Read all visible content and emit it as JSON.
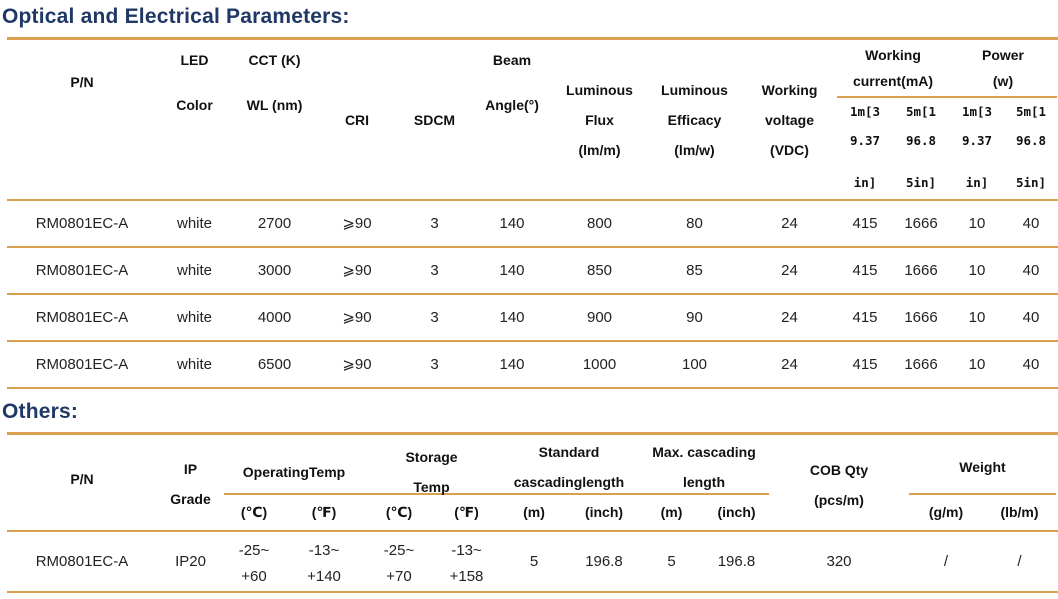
{
  "colors": {
    "accent_line": "#D9A050",
    "title_navy": "#1F3864"
  },
  "optical": {
    "title": "Optical and Electrical Parameters:",
    "headers": {
      "pn": "P/N",
      "led": [
        "LED",
        "Color"
      ],
      "cct": [
        "CCT (K)",
        "WL (nm)"
      ],
      "cri": "CRI",
      "sdcm": "SDCM",
      "beam": [
        "Beam",
        "Angle(°)"
      ],
      "flux": [
        "Luminous",
        "Flux",
        "(lm/m)"
      ],
      "efficacy": [
        "Luminous",
        "Efficacy",
        "(lm/w)"
      ],
      "voltage": [
        "Working",
        "voltage",
        "(VDC)"
      ],
      "current_group": [
        "Working",
        "current(mA)"
      ],
      "power_group": [
        "Power",
        "(w)"
      ],
      "sub_1m": [
        "1m[3",
        "9.37",
        "in]"
      ],
      "sub_5m": [
        "5m[1",
        "96.8",
        "5in]"
      ]
    },
    "rows": [
      [
        "RM0801EC-A",
        "white",
        "2700",
        "⩾90",
        "3",
        "140",
        "800",
        "80",
        "24",
        "415",
        "1666",
        "10",
        "40"
      ],
      [
        "RM0801EC-A",
        "white",
        "3000",
        "⩾90",
        "3",
        "140",
        "850",
        "85",
        "24",
        "415",
        "1666",
        "10",
        "40"
      ],
      [
        "RM0801EC-A",
        "white",
        "4000",
        "⩾90",
        "3",
        "140",
        "900",
        "90",
        "24",
        "415",
        "1666",
        "10",
        "40"
      ],
      [
        "RM0801EC-A",
        "white",
        "6500",
        "⩾90",
        "3",
        "140",
        "1000",
        "100",
        "24",
        "415",
        "1666",
        "10",
        "40"
      ]
    ]
  },
  "others": {
    "title": "Others:",
    "headers": {
      "pn": "P/N",
      "ip": [
        "IP",
        "Grade"
      ],
      "operating": "OperatingTemp",
      "storage": [
        "Storage",
        "Temp"
      ],
      "standard": [
        "Standard",
        "cascadinglength"
      ],
      "max": [
        "Max. cascading",
        "length"
      ],
      "cob": [
        "COB Qty",
        "(pcs/m)"
      ],
      "weight": "Weight",
      "unit_c": "(℃)",
      "unit_f": "(℉)",
      "unit_m": "(m)",
      "unit_inch": "(inch)",
      "unit_g": "(g/m)",
      "unit_lb": "(lb/m)"
    },
    "row": [
      "RM0801EC-A",
      "IP20",
      [
        "-25~",
        "+60"
      ],
      [
        "-13~",
        "+140"
      ],
      [
        "-25~",
        "+70"
      ],
      [
        "-13~",
        "+158"
      ],
      "5",
      "196.8",
      "5",
      "196.8",
      "320",
      "/",
      "/"
    ]
  }
}
